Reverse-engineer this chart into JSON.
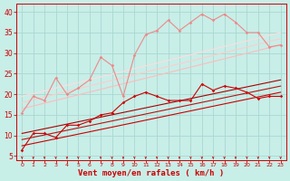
{
  "background_color": "#c8eee8",
  "grid_color": "#a8d8d0",
  "xlabel": "Vent moyen/en rafales ( km/h )",
  "xlabel_color": "#cc0000",
  "xlabel_fontsize": 6.5,
  "tick_color": "#cc0000",
  "x_ticks": [
    0,
    1,
    2,
    3,
    4,
    5,
    6,
    7,
    8,
    9,
    10,
    11,
    12,
    13,
    14,
    15,
    16,
    17,
    18,
    19,
    20,
    21,
    22,
    23
  ],
  "ylim": [
    4,
    42
  ],
  "xlim": [
    -0.5,
    23.5
  ],
  "yticks": [
    5,
    10,
    15,
    20,
    25,
    30,
    35,
    40
  ],
  "series": [
    {
      "x": [
        0,
        1,
        2,
        3,
        4,
        5,
        6,
        7,
        8,
        9,
        10,
        11,
        12,
        13,
        14,
        15,
        16,
        17,
        18,
        19,
        20,
        21,
        22,
        23
      ],
      "y": [
        6.5,
        10.5,
        10.5,
        9.5,
        12.5,
        12.5,
        13.5,
        15.0,
        15.5,
        18.0,
        19.5,
        20.5,
        19.5,
        18.5,
        18.5,
        18.5,
        22.5,
        21.0,
        22.0,
        21.5,
        20.5,
        19.0,
        19.5,
        19.5
      ],
      "color": "#cc0000",
      "lw": 0.8,
      "marker": "D",
      "marker_size": 1.8,
      "linestyle": "-"
    },
    {
      "x": [
        0,
        23
      ],
      "y": [
        7.5,
        20.5
      ],
      "color": "#cc0000",
      "lw": 0.8,
      "marker": null,
      "linestyle": "-"
    },
    {
      "x": [
        0,
        23
      ],
      "y": [
        9.0,
        22.0
      ],
      "color": "#bb1111",
      "lw": 0.8,
      "marker": null,
      "linestyle": "-"
    },
    {
      "x": [
        0,
        23
      ],
      "y": [
        10.5,
        23.5
      ],
      "color": "#aa0000",
      "lw": 0.8,
      "marker": null,
      "linestyle": "-"
    },
    {
      "x": [
        0,
        1,
        2,
        3,
        4,
        5,
        6,
        7,
        8,
        9,
        10,
        11,
        12,
        13,
        14,
        15,
        16,
        17,
        18,
        19,
        20,
        21,
        22,
        23
      ],
      "y": [
        15.5,
        19.5,
        18.5,
        24.0,
        20.0,
        21.5,
        23.5,
        29.0,
        27.0,
        19.5,
        29.5,
        34.5,
        35.5,
        38.0,
        35.5,
        37.5,
        39.5,
        38.0,
        39.5,
        37.5,
        35.0,
        35.0,
        31.5,
        32.0
      ],
      "color": "#ee8888",
      "lw": 0.8,
      "marker": "D",
      "marker_size": 1.8,
      "linestyle": "-"
    },
    {
      "x": [
        0,
        23
      ],
      "y": [
        16.5,
        32.0
      ],
      "color": "#ffbbbb",
      "lw": 0.8,
      "marker": null,
      "linestyle": "-"
    },
    {
      "x": [
        0,
        23
      ],
      "y": [
        18.0,
        33.5
      ],
      "color": "#ffcccc",
      "lw": 0.8,
      "marker": null,
      "linestyle": "-"
    },
    {
      "x": [
        0,
        23
      ],
      "y": [
        19.5,
        35.0
      ],
      "color": "#ffdddd",
      "lw": 0.8,
      "marker": null,
      "linestyle": "-"
    }
  ],
  "wind_arrows": {
    "x": [
      0,
      1,
      2,
      3,
      4,
      5,
      6,
      7,
      8,
      9,
      10,
      11,
      12,
      13,
      14,
      15,
      16,
      17,
      18,
      19,
      20,
      21,
      22,
      23
    ],
    "color": "#cc0000"
  }
}
